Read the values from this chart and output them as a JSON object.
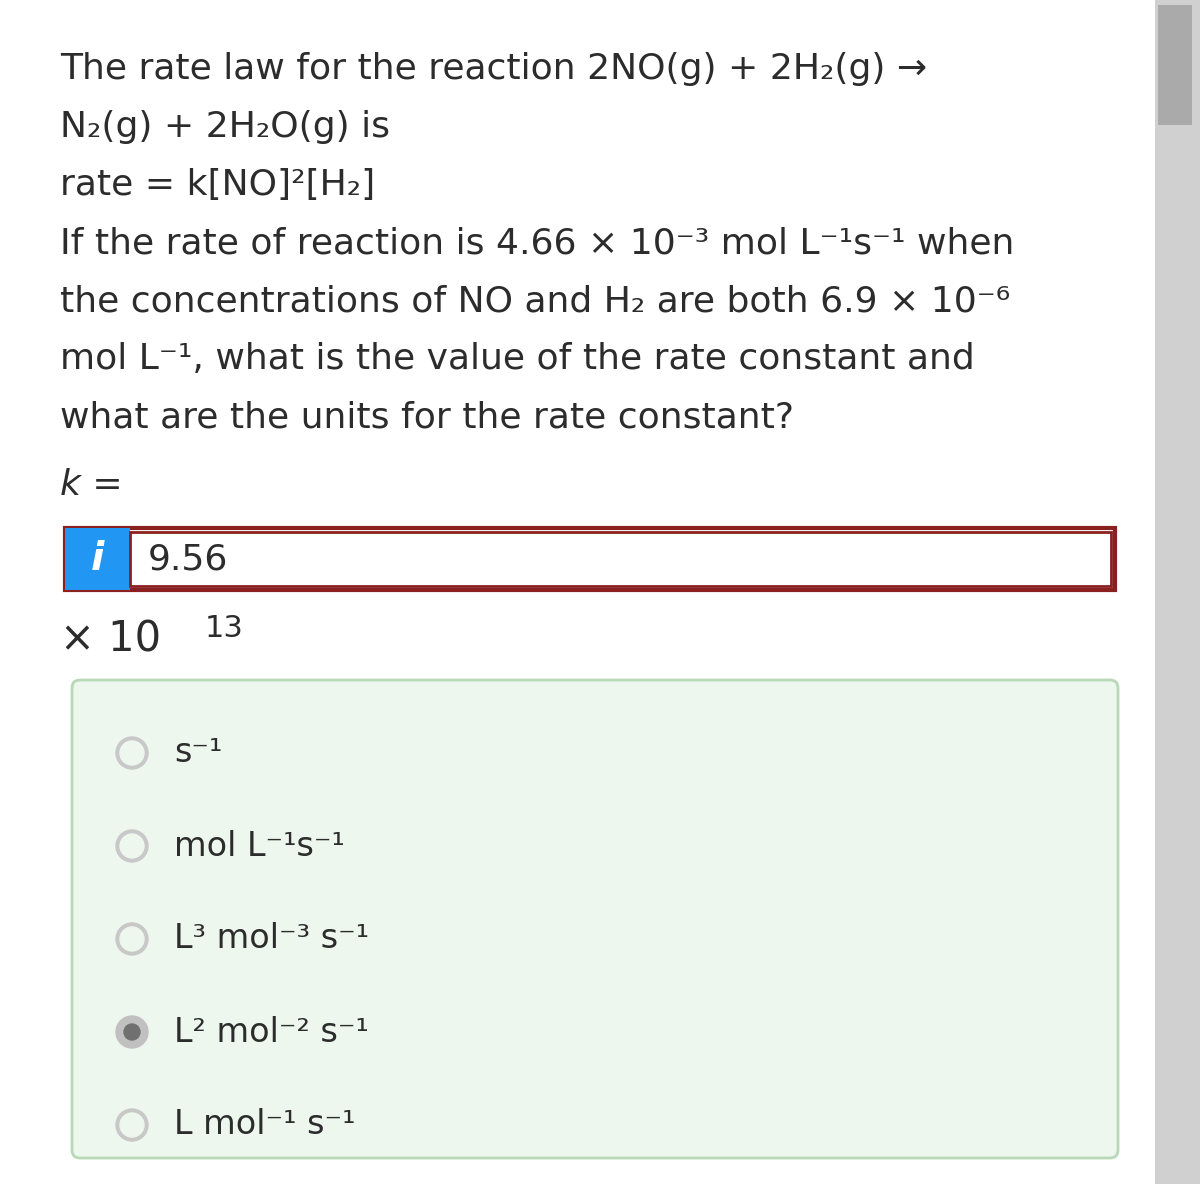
{
  "bg_color": "#f5f5f5",
  "content_bg": "#ffffff",
  "text_color": "#2c2c2c",
  "paragraph_text_lines": [
    "The rate law for the reaction 2NO(g) + 2H₂(g) →",
    "N₂(g) + 2H₂O(g) is",
    "rate = k[NO]²[H₂]",
    "If the rate of reaction is 4.66 × 10⁻³ mol L⁻¹s⁻¹ when",
    "the concentrations of NO and H₂ are both 6.9 × 10⁻⁶",
    "mol L⁻¹, what is the value of the rate constant and",
    "what are the units for the rate constant?"
  ],
  "k_label": "k =",
  "input_box_value": "9.56",
  "blue_box_color": "#2196F3",
  "blue_box_text": "i",
  "input_border_color": "#8B2020",
  "input_bg_color": "#ffffff",
  "green_box_color": "#edf7ee",
  "green_box_border_color": "#b8d8b8",
  "scrollbar_color": "#aaaaaa",
  "radio_options": [
    {
      "text": "s⁻¹",
      "selected": false
    },
    {
      "text": "mol L⁻¹s⁻¹",
      "selected": false
    },
    {
      "text": "L³ mol⁻³ s⁻¹",
      "selected": false
    },
    {
      "text": "L² mol⁻² s⁻¹",
      "selected": true
    },
    {
      "text": "L mol⁻¹ s⁻¹",
      "selected": false
    }
  ],
  "radio_unselected_color": "#c8c8c8",
  "radio_selected_color": "#888888",
  "font_size_main": 26,
  "font_size_radio": 24
}
